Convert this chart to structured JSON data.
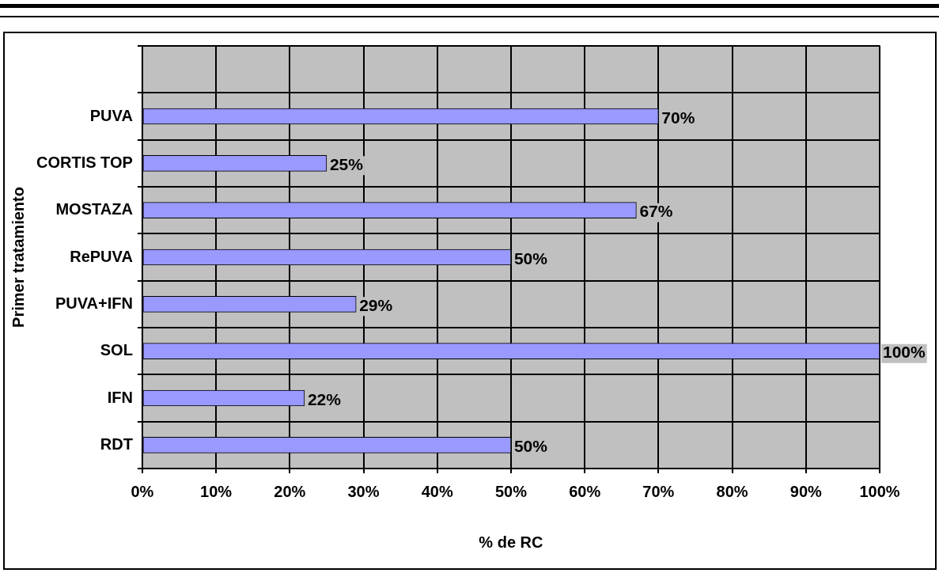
{
  "chart_data": {
    "type": "bar",
    "orientation": "horizontal",
    "categories": [
      null,
      "PUVA",
      "CORTIS TOP",
      "MOSTAZA",
      "RePUVA",
      "PUVA+IFN",
      "SOL",
      "IFN",
      "RDT"
    ],
    "values": [
      null,
      70,
      25,
      67,
      50,
      29,
      100,
      22,
      50
    ],
    "value_labels": [
      null,
      "70%",
      "25%",
      "67%",
      "50%",
      "29%",
      "100%",
      "22%",
      "50%"
    ],
    "color": "#9999ff",
    "xlabel": "% de RC",
    "ylabel": "Primer tratamiento",
    "xlim": [
      0,
      100
    ],
    "xticks": [
      {
        "value": 0,
        "label": "0%"
      },
      {
        "value": 10,
        "label": "10%"
      },
      {
        "value": 20,
        "label": "20%"
      },
      {
        "value": 30,
        "label": "30%"
      },
      {
        "value": 40,
        "label": "40%"
      },
      {
        "value": 50,
        "label": "50%"
      },
      {
        "value": 60,
        "label": "60%"
      },
      {
        "value": 70,
        "label": "70%"
      },
      {
        "value": 80,
        "label": "80%"
      },
      {
        "value": 90,
        "label": "90%"
      },
      {
        "value": 100,
        "label": "100%"
      }
    ],
    "grid": true,
    "legend": false
  }
}
